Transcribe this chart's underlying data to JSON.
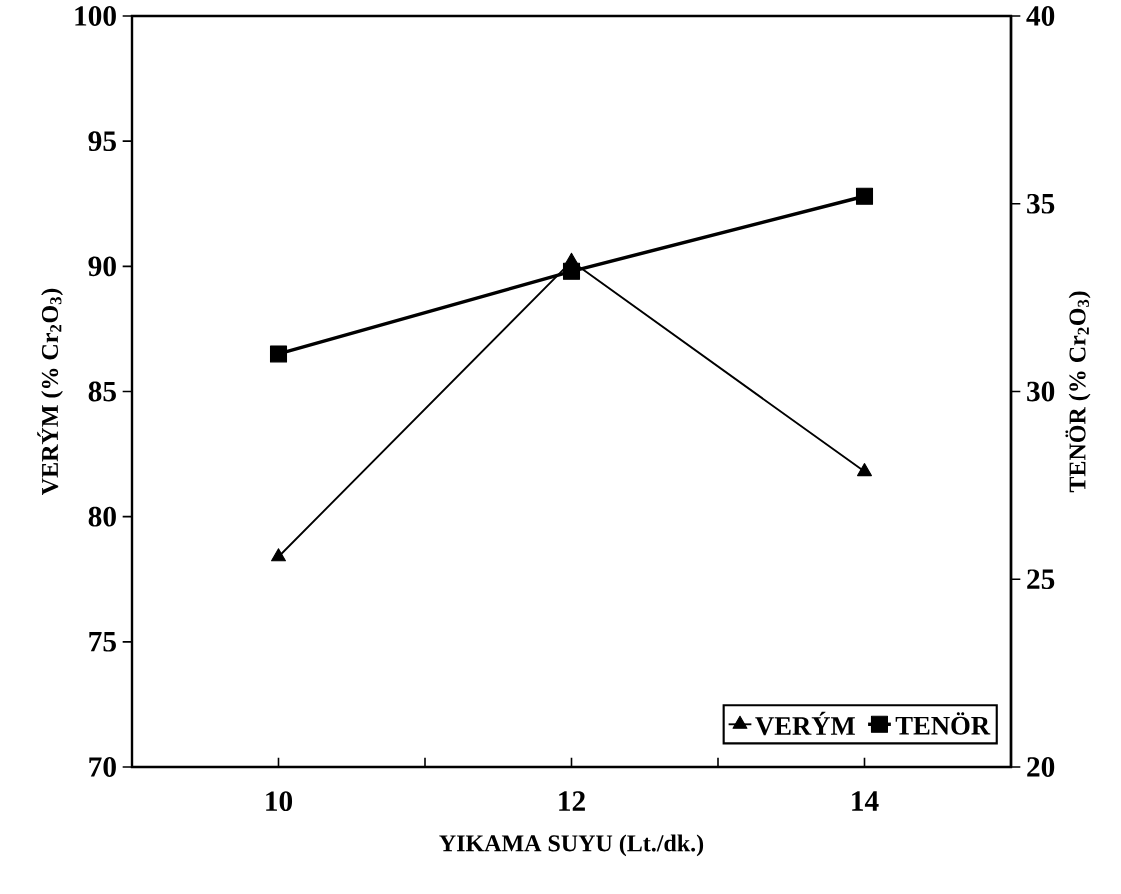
{
  "chart_data": {
    "type": "line",
    "xlabel": "YIKAMA SUYU  (Lt./dk.)",
    "ylabel": "VERÝM (% Cr$_{2}$O$_{3}$)",
    "y2label": "TENÖR (% Cr$_{2}$O$_{3}$)",
    "x": [
      10,
      12,
      14
    ],
    "xlim": [
      9,
      15
    ],
    "xticks": [
      10,
      {
        "value": 11,
        "label": null
      },
      12,
      {
        "value": 13,
        "label": null
      },
      14
    ],
    "ylim": [
      70,
      100
    ],
    "yticks": [
      70,
      75,
      80,
      85,
      90,
      95,
      100
    ],
    "y2lim": [
      20,
      40
    ],
    "y2ticks": [
      20,
      25,
      30,
      35,
      40
    ],
    "legend": "bottom right",
    "grid": false,
    "line_style": "solid",
    "series": [
      {
        "name": "VERÝM",
        "color": "#000000",
        "marker": "triangle",
        "values": [
          78.4,
          90.2,
          81.8
        ]
      },
      {
        "name": "TENÖR",
        "color": "#000000",
        "marker": "square",
        "axis": "y2",
        "values": [
          31.0,
          33.2,
          35.2
        ]
      }
    ]
  }
}
